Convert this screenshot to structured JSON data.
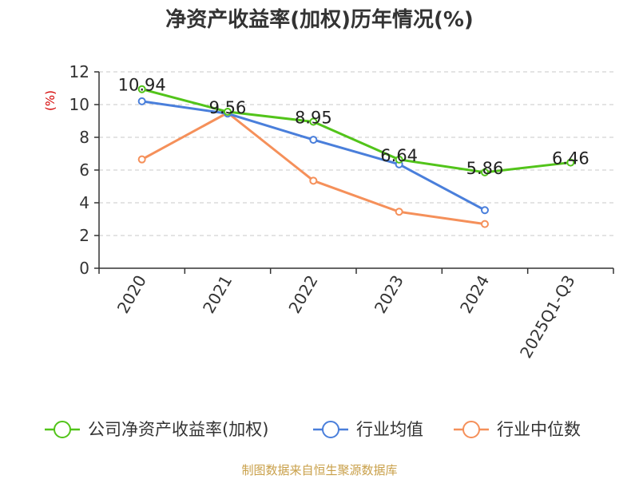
{
  "chart_data": {
    "type": "line",
    "title": "净资产收益率(加权)历年情况(%)",
    "ylabel": "(%)",
    "xlabel": "",
    "ylim": [
      0,
      12
    ],
    "yticks": [
      0,
      2,
      4,
      6,
      8,
      10,
      12
    ],
    "grid": "horizontal dashed",
    "categories": [
      "2020",
      "2021",
      "2022",
      "2023",
      "2024",
      "2025Q1-Q3"
    ],
    "series": [
      {
        "name": "公司净资产收益率(加权)",
        "color": "#52c41a",
        "values": [
          10.94,
          9.56,
          8.95,
          6.64,
          5.86,
          6.46
        ],
        "labels": [
          "10.94",
          "9.56",
          "8.95",
          "6.64",
          "5.86",
          "6.46"
        ]
      },
      {
        "name": "行业均值",
        "color": "#4a7fdb",
        "values": [
          10.2,
          9.45,
          7.85,
          6.35,
          3.55,
          null
        ]
      },
      {
        "name": "行业中位数",
        "color": "#f5905a",
        "values": [
          6.65,
          9.5,
          5.35,
          3.45,
          2.7,
          null
        ]
      }
    ],
    "legend_position": "bottom"
  },
  "footer": {
    "source": "制图数据来自恒生聚源数据库"
  }
}
